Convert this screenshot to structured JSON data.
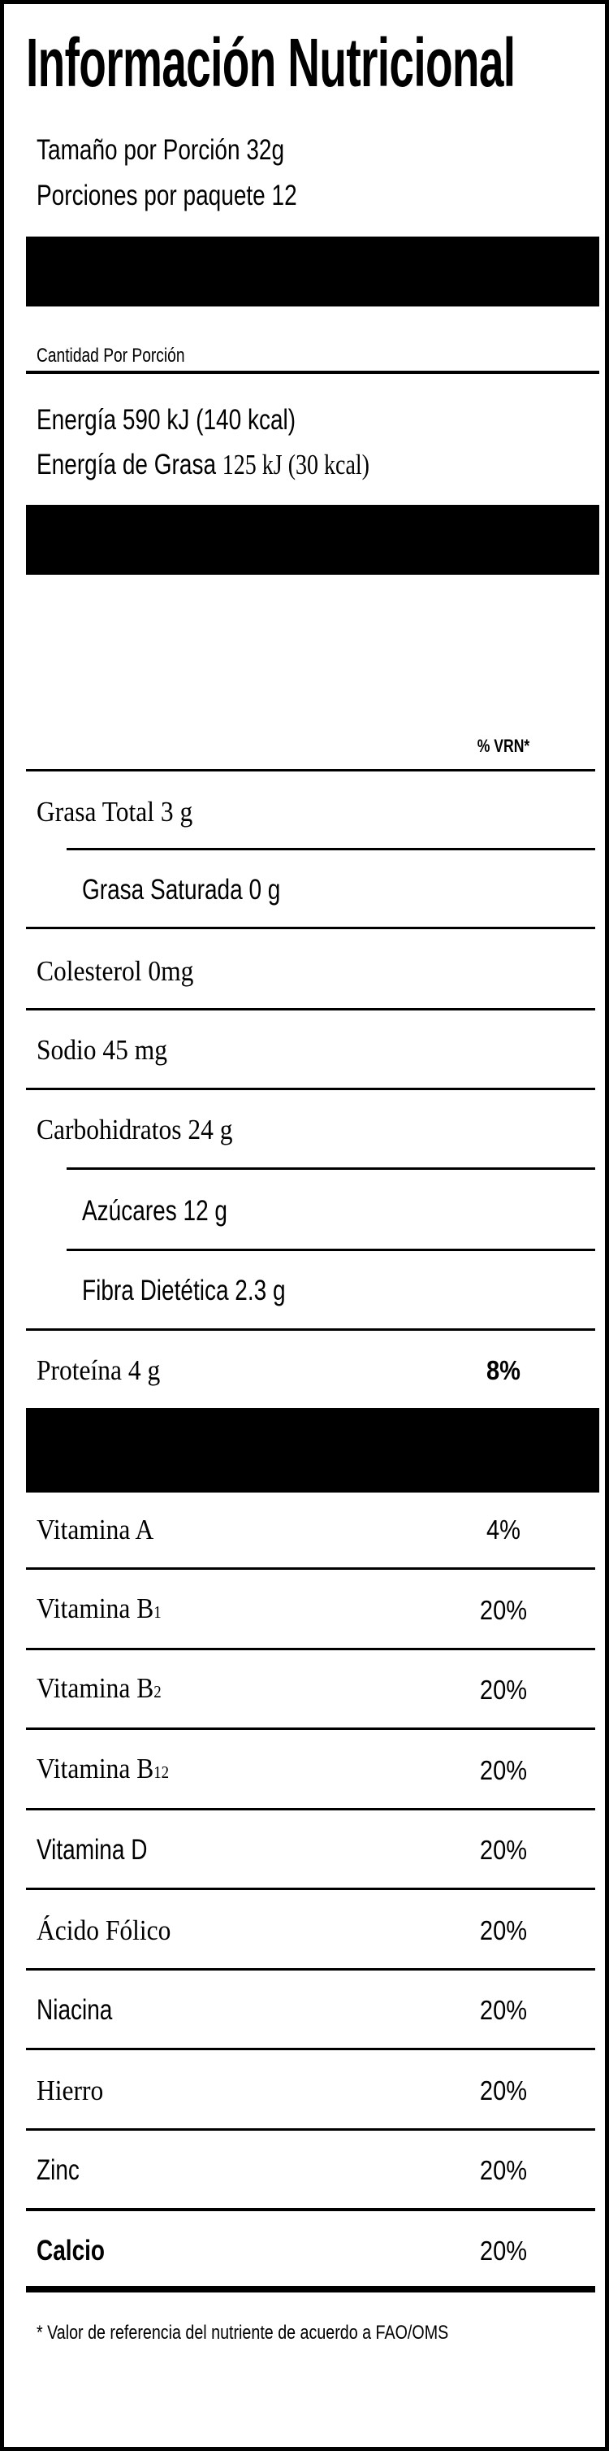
{
  "title": "Información Nutricional",
  "serving": {
    "size": "Tamaño por Porción 32g",
    "per_package": "Porciones por paquete 12"
  },
  "amount_header": "Cantidad Por Porción",
  "energy": {
    "total": "Energía 590 kJ (140 kcal)",
    "fat_label": "Energía de Grasa ",
    "fat_value": "125 kJ (30 kcal)"
  },
  "vrn_header": "% VRN*",
  "nutrients": [
    {
      "label": "Grasa Total 3 g",
      "pct": ""
    },
    {
      "label": "Grasa Saturada 0 g",
      "pct": ""
    },
    {
      "label": "Colesterol 0mg",
      "pct": ""
    },
    {
      "label": "Sodio 45 mg",
      "pct": ""
    },
    {
      "label": "Carbohidratos  24 g",
      "pct": ""
    },
    {
      "label": "Azúcares  12 g",
      "pct": ""
    },
    {
      "label": "Fibra Dietética 2.3 g",
      "pct": ""
    },
    {
      "label": "Proteína 4 g",
      "pct": "8%"
    }
  ],
  "vitamins": [
    {
      "label": "Vitamina A",
      "sub": "",
      "pct": "4%"
    },
    {
      "label": "Vitamina B",
      "sub": "1",
      "pct": "20%"
    },
    {
      "label": "Vitamina B",
      "sub": "2",
      "pct": "20%"
    },
    {
      "label": "Vitamina B",
      "sub": "12",
      "pct": "20%"
    },
    {
      "label": "Vitamina D",
      "sub": "",
      "pct": "20%"
    },
    {
      "label": "Ácido Fólico",
      "sub": "",
      "pct": "20%"
    },
    {
      "label": "Niacina",
      "sub": "",
      "pct": "20%"
    },
    {
      "label": "Hierro",
      "sub": "",
      "pct": "20%"
    },
    {
      "label": "Zinc",
      "sub": "",
      "pct": "20%"
    },
    {
      "label": "Calcio",
      "sub": "",
      "pct": "20%"
    }
  ],
  "footnote": "*  Valor de referencia del nutriente de acuerdo a FAO/OMS",
  "colors": {
    "ink": "#000000",
    "background": "#ffffff"
  }
}
